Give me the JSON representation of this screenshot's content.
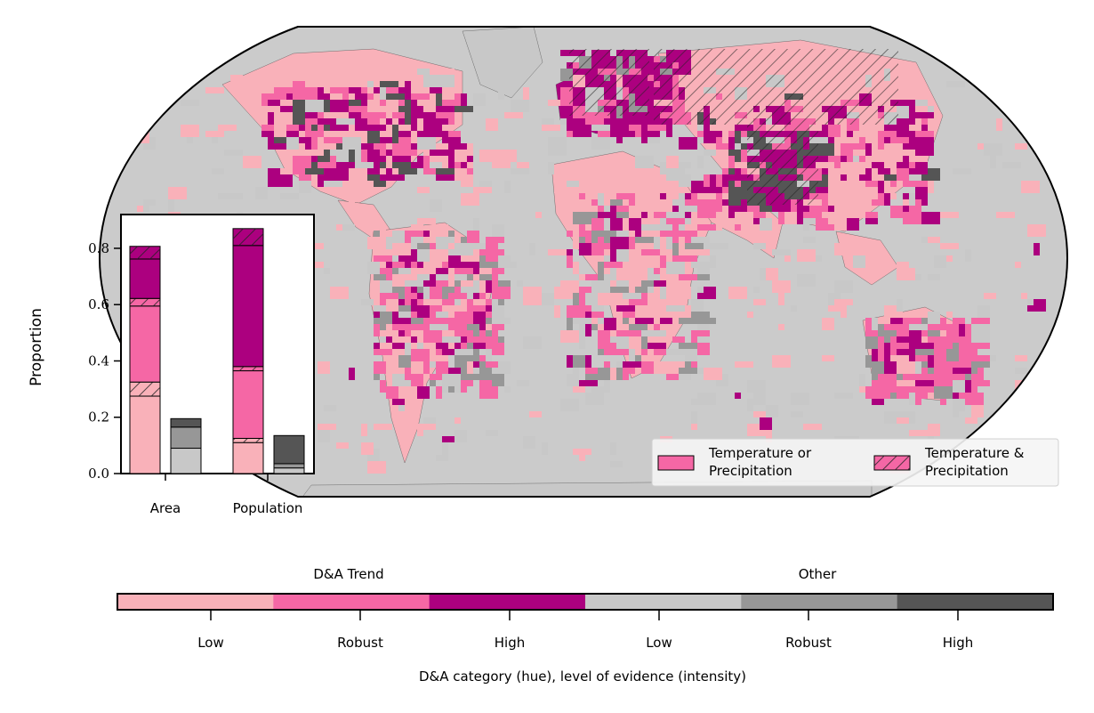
{
  "colors": {
    "trend_low": "#f9b1b9",
    "trend_robust": "#f567a5",
    "trend_high": "#ac007f",
    "other_low": "#c8c8c8",
    "other_robust": "#979797",
    "other_high": "#555555",
    "ocean": "#cbcbcb"
  },
  "legend": {
    "item1": "Temperature or\nPrecipitation",
    "item2": "Temperature &\nPrecipitation"
  },
  "colorbar": {
    "group_labels": [
      "D&A Trend",
      "Other"
    ],
    "tick_labels": [
      "Low",
      "Robust",
      "High",
      "Low",
      "Robust",
      "High"
    ],
    "title": "D&A category (hue), level of evidence (intensity)"
  },
  "chart_data": {
    "type": "bar",
    "stacked": true,
    "ylabel": "Proportion",
    "ylim": [
      0,
      0.92
    ],
    "yticks": [
      "0.0",
      "0.2",
      "0.4",
      "0.6",
      "0.8"
    ],
    "categories": [
      "Area",
      "Population"
    ],
    "trend_bar": {
      "Area": [
        {
          "level": "Low",
          "value": 0.275
        },
        {
          "level": "Low (T&P)",
          "value": 0.05
        },
        {
          "level": "Robust",
          "value": 0.27
        },
        {
          "level": "Robust (T&P)",
          "value": 0.027
        },
        {
          "level": "High",
          "value": 0.14
        },
        {
          "level": "High (T&P)",
          "value": 0.045
        }
      ],
      "Population": [
        {
          "level": "Low",
          "value": 0.11
        },
        {
          "level": "Low (T&P)",
          "value": 0.015
        },
        {
          "level": "Robust",
          "value": 0.24
        },
        {
          "level": "Robust (T&P)",
          "value": 0.015
        },
        {
          "level": "High",
          "value": 0.43
        },
        {
          "level": "High (T&P)",
          "value": 0.06
        }
      ]
    },
    "other_bar": {
      "Area": [
        {
          "level": "Low",
          "value": 0.09
        },
        {
          "level": "Robust",
          "value": 0.075
        },
        {
          "level": "High",
          "value": 0.03
        }
      ],
      "Population": [
        {
          "level": "Low",
          "value": 0.02
        },
        {
          "level": "Robust",
          "value": 0.015
        },
        {
          "level": "High",
          "value": 0.1
        }
      ]
    }
  }
}
